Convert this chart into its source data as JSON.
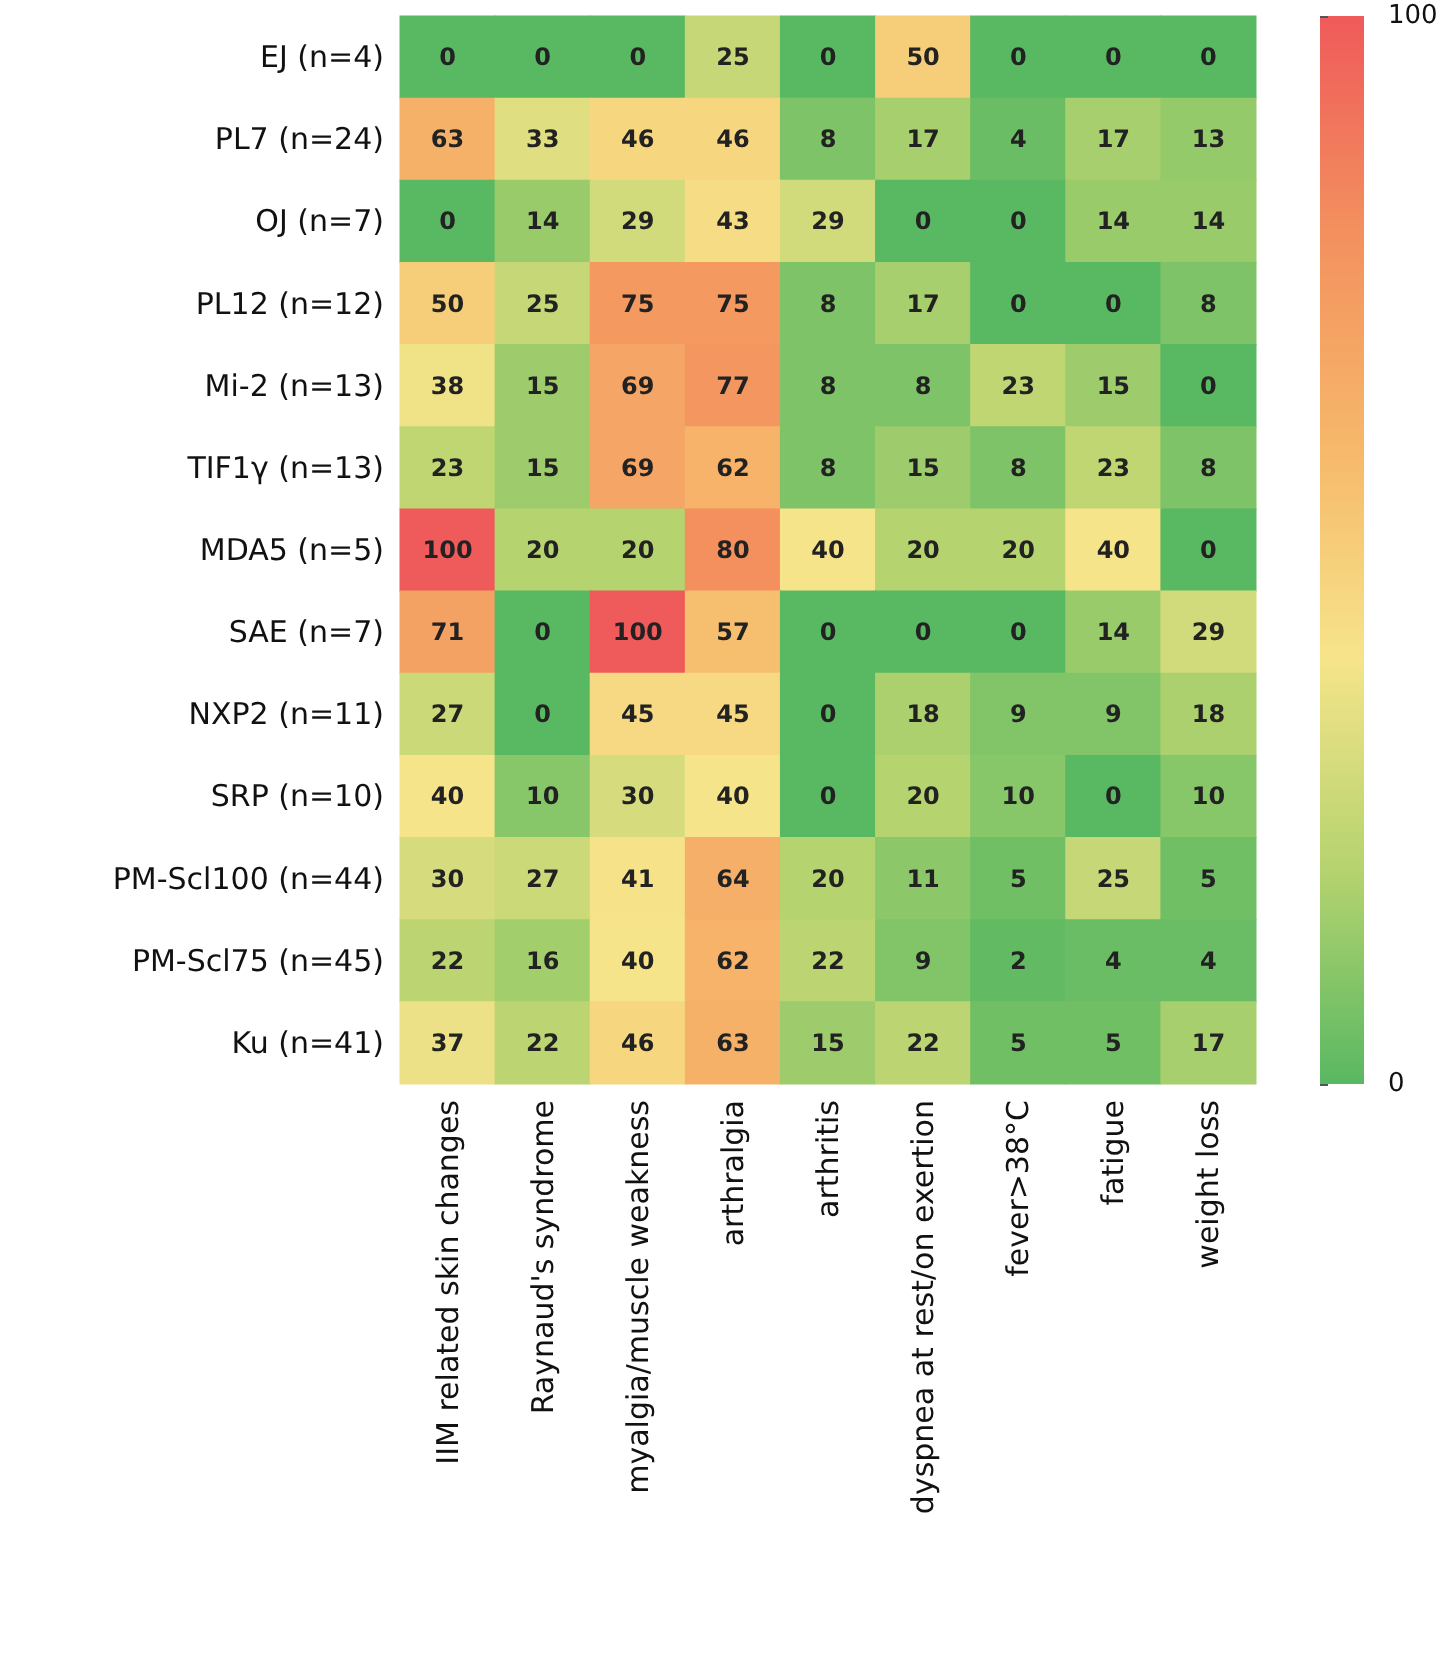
{
  "chart_data": {
    "type": "heatmap",
    "categories": [
      "IIM related skin changes",
      "Raynaud's syndrome",
      "myalgia/muscle weakness",
      "arthralgia",
      "arthritis",
      "dyspnea at rest/on exertion",
      "fever>38°C",
      "fatigue",
      "weight loss"
    ],
    "y_categories": [
      "EJ (n=4)",
      "PL7 (n=24)",
      "OJ (n=7)",
      "PL12 (n=12)",
      "Mi-2 (n=13)",
      "TIF1γ (n=13)",
      "MDA5 (n=5)",
      "SAE (n=7)",
      "NXP2 (n=11)",
      "SRP (n=10)",
      "PM-Scl100 (n=44)",
      "PM-Scl75 (n=45)",
      "Ku (n=41)"
    ],
    "cells": [
      [
        0,
        0,
        0,
        25,
        0,
        50,
        0,
        0,
        0
      ],
      [
        63,
        33,
        46,
        46,
        8,
        17,
        4,
        17,
        13
      ],
      [
        0,
        14,
        29,
        43,
        29,
        0,
        0,
        14,
        14
      ],
      [
        50,
        25,
        75,
        75,
        8,
        17,
        0,
        0,
        8
      ],
      [
        38,
        15,
        69,
        77,
        8,
        8,
        23,
        15,
        0
      ],
      [
        23,
        15,
        69,
        62,
        8,
        15,
        8,
        23,
        8
      ],
      [
        100,
        20,
        20,
        80,
        40,
        20,
        20,
        40,
        0
      ],
      [
        71,
        0,
        100,
        57,
        0,
        0,
        0,
        14,
        29
      ],
      [
        27,
        0,
        45,
        45,
        0,
        18,
        9,
        9,
        18
      ],
      [
        40,
        10,
        30,
        40,
        0,
        20,
        10,
        0,
        10
      ],
      [
        30,
        27,
        41,
        64,
        20,
        11,
        5,
        25,
        5
      ],
      [
        22,
        16,
        40,
        62,
        22,
        9,
        2,
        4,
        4
      ],
      [
        37,
        22,
        46,
        63,
        15,
        22,
        5,
        5,
        17
      ]
    ],
    "clim": [
      0,
      100
    ],
    "cticks": [
      0,
      100
    ],
    "data_labels": true
  }
}
